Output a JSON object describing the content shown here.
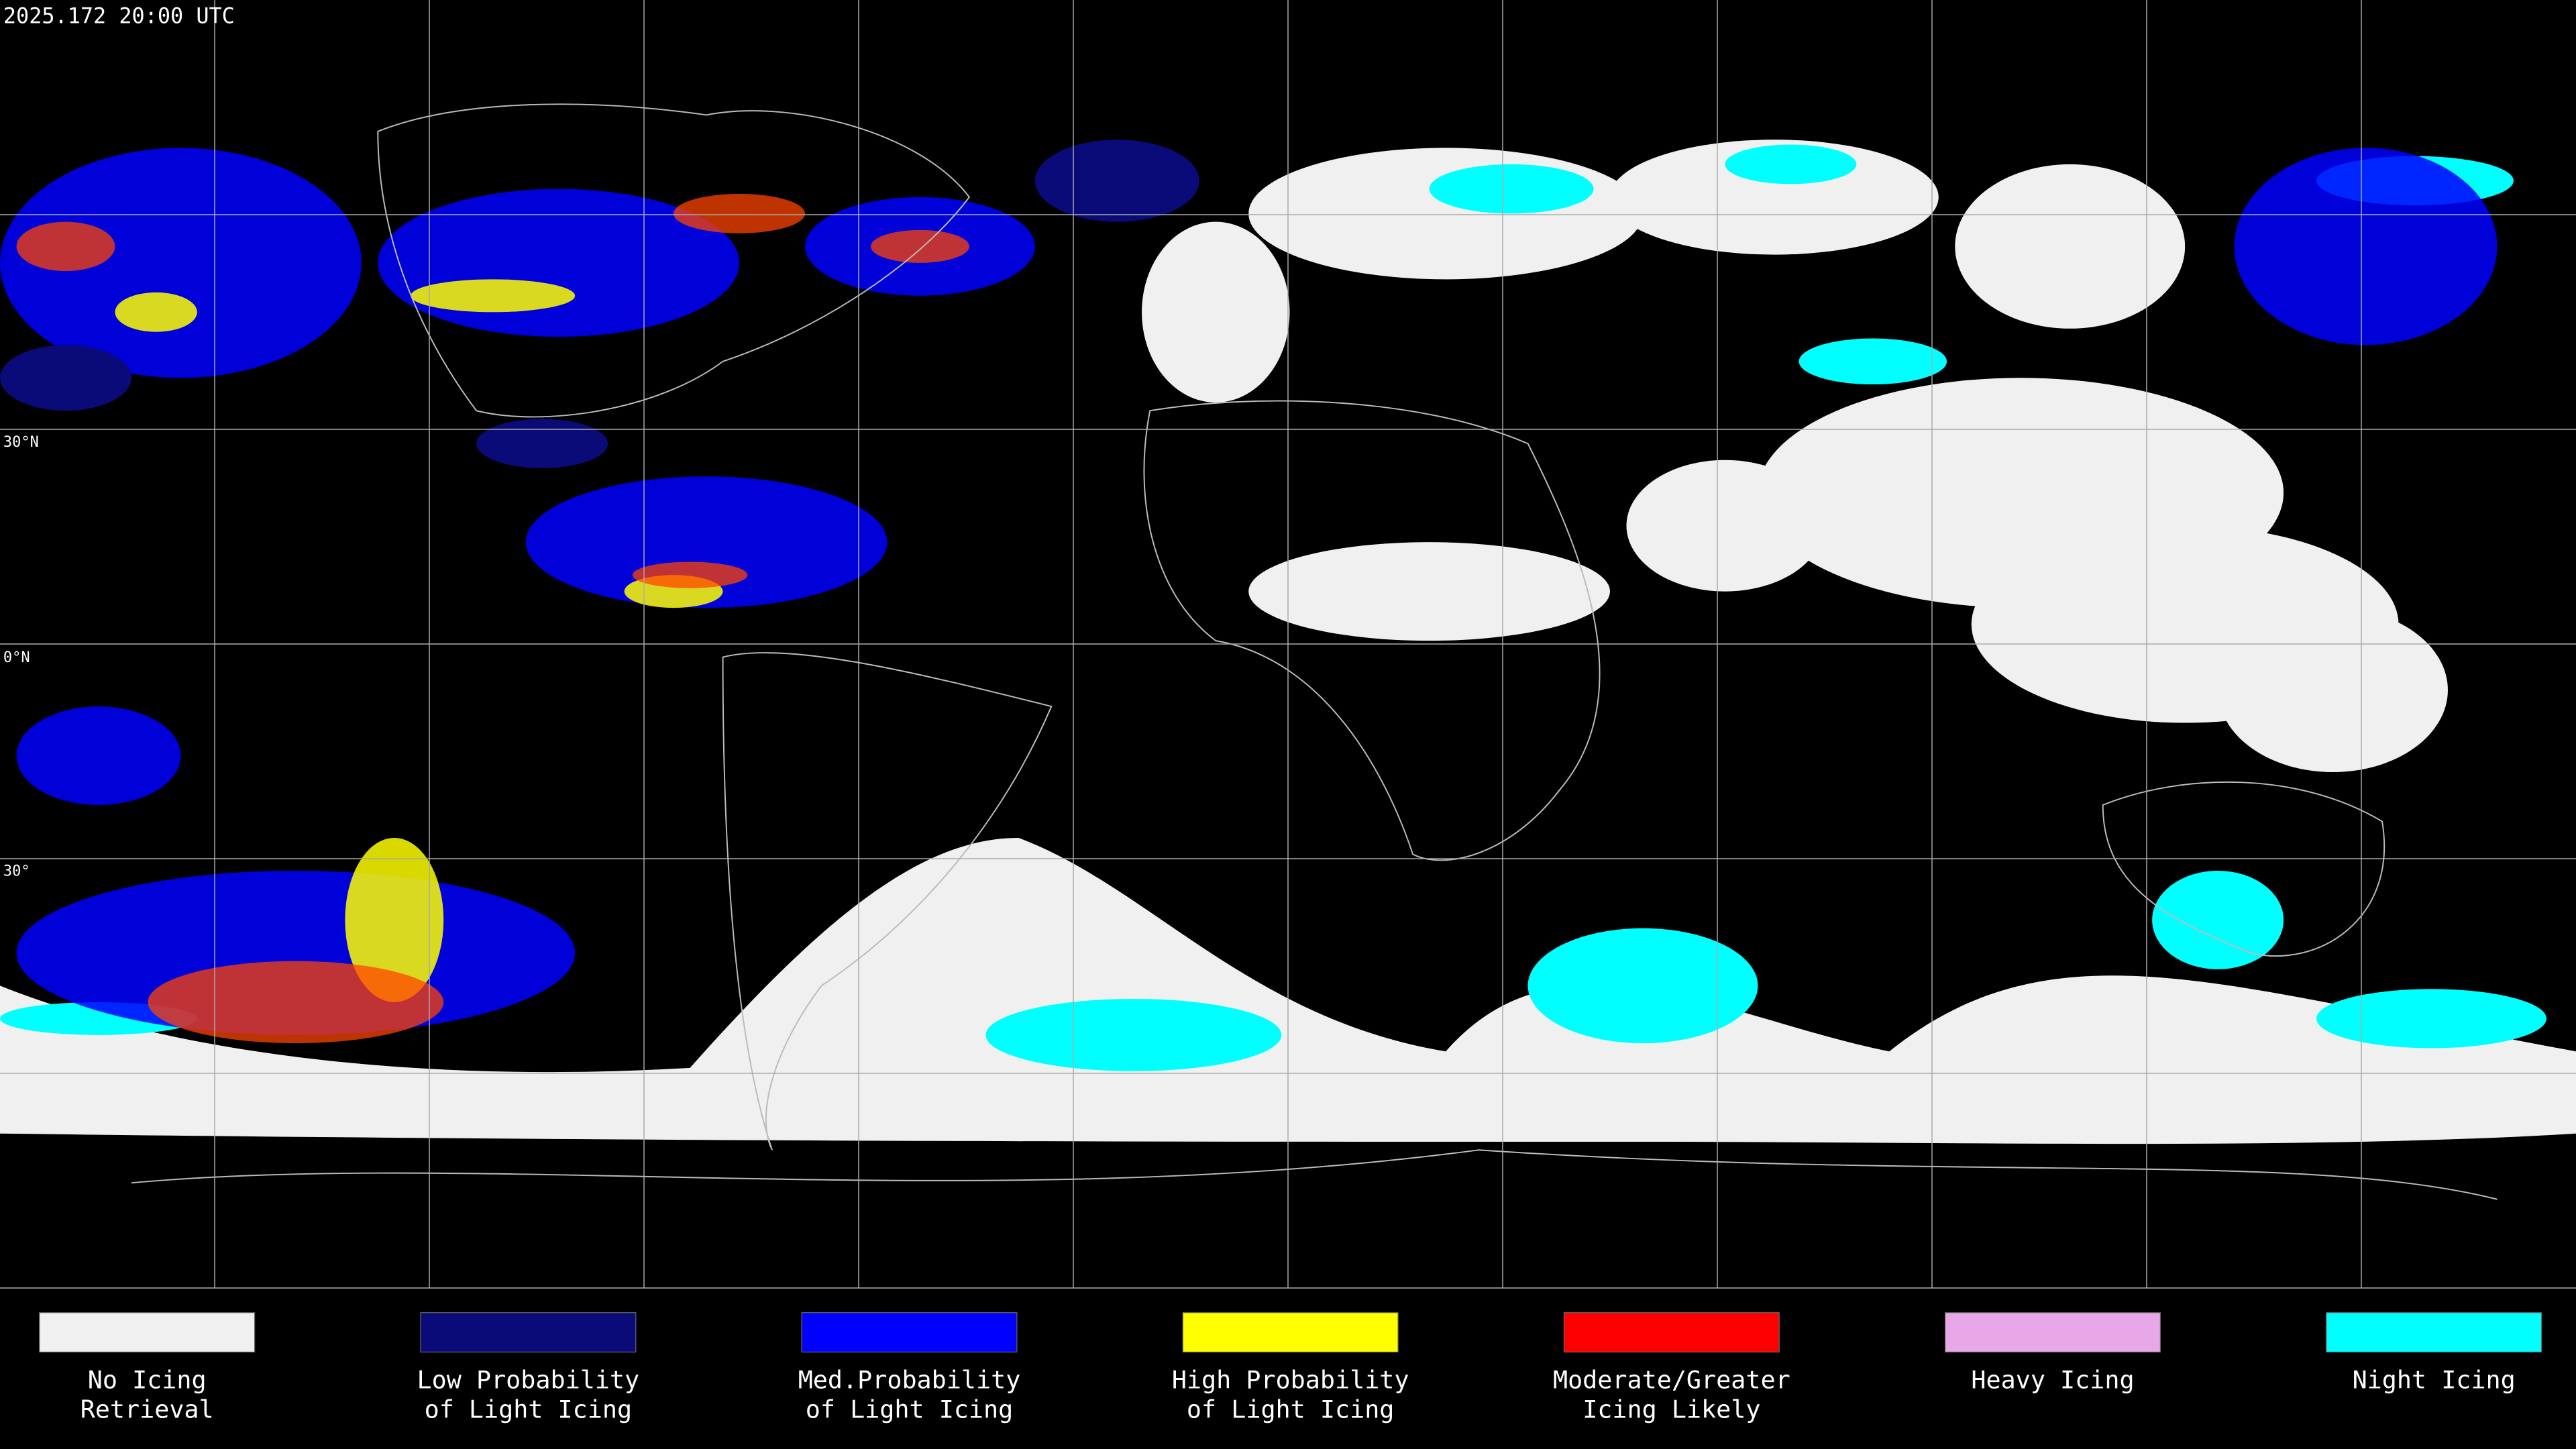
{
  "header": {
    "timestamp": "2025.172 20:00 UTC"
  },
  "map": {
    "lat_labels": [
      "30°N",
      "0°N",
      "30°"
    ]
  },
  "legend": {
    "items": [
      {
        "lines": [
          "No Icing",
          "Retrieval"
        ],
        "color": "#f0f0f0"
      },
      {
        "lines": [
          "Low Probability",
          "of Light Icing"
        ],
        "color": "#0a0a78"
      },
      {
        "lines": [
          "Med.Probability",
          "of Light Icing"
        ],
        "color": "#0000ff"
      },
      {
        "lines": [
          "High Probability",
          "of Light Icing"
        ],
        "color": "#ffff00"
      },
      {
        "lines": [
          "Moderate/Greater",
          "Icing Likely"
        ],
        "color": "#ff0000"
      },
      {
        "lines": [
          "Heavy Icing"
        ],
        "color": "#e8a8e8"
      },
      {
        "lines": [
          "Night Icing"
        ],
        "color": "#00ffff"
      }
    ]
  }
}
